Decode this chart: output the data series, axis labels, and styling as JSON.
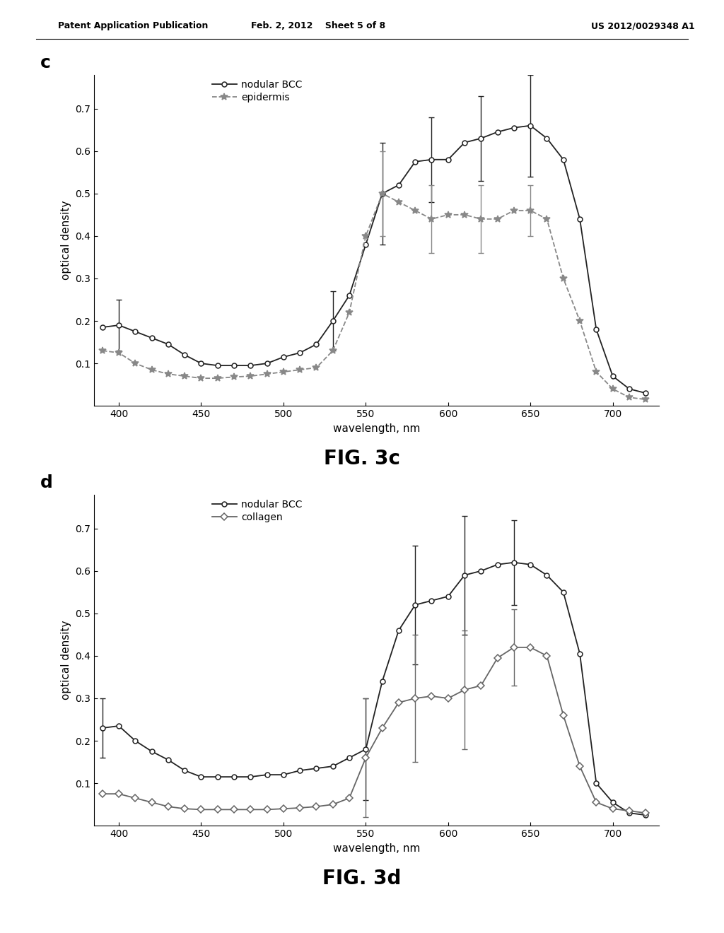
{
  "header_left": "Patent Application Publication",
  "header_center": "Feb. 2, 2012    Sheet 5 of 8",
  "header_right": "US 2012/0029348 A1",
  "chart_c": {
    "label": "c",
    "xlabel": "wavelength, nm",
    "ylabel": "optical density",
    "xlim": [
      385,
      728
    ],
    "ylim": [
      0.0,
      0.78
    ],
    "yticks": [
      0.1,
      0.2,
      0.3,
      0.4,
      0.5,
      0.6,
      0.7
    ],
    "xticks": [
      400,
      450,
      500,
      550,
      600,
      650,
      700
    ],
    "fig_label": "FIG. 3c",
    "series": {
      "nodular_BCC": {
        "label": "nodular BCC",
        "x": [
          390,
          400,
          410,
          420,
          430,
          440,
          450,
          460,
          470,
          480,
          490,
          500,
          510,
          520,
          530,
          540,
          550,
          560,
          570,
          580,
          590,
          600,
          610,
          620,
          630,
          640,
          650,
          660,
          670,
          680,
          690,
          700,
          710,
          720
        ],
        "y": [
          0.185,
          0.19,
          0.175,
          0.16,
          0.145,
          0.12,
          0.1,
          0.095,
          0.095,
          0.095,
          0.1,
          0.115,
          0.125,
          0.145,
          0.2,
          0.26,
          0.38,
          0.5,
          0.52,
          0.575,
          0.58,
          0.58,
          0.62,
          0.63,
          0.645,
          0.655,
          0.66,
          0.63,
          0.58,
          0.44,
          0.18,
          0.07,
          0.04,
          0.03
        ],
        "yerr": [
          null,
          0.06,
          null,
          null,
          null,
          null,
          null,
          null,
          null,
          null,
          null,
          null,
          null,
          null,
          0.07,
          null,
          null,
          0.12,
          null,
          null,
          0.1,
          null,
          null,
          0.1,
          null,
          null,
          0.12,
          null,
          null,
          null,
          null,
          null,
          null,
          null
        ],
        "color": "#222222",
        "marker": "o",
        "markersize": 5,
        "linestyle": "-"
      },
      "epidermis": {
        "label": "epidermis",
        "x": [
          390,
          400,
          410,
          420,
          430,
          440,
          450,
          460,
          470,
          480,
          490,
          500,
          510,
          520,
          530,
          540,
          550,
          560,
          570,
          580,
          590,
          600,
          610,
          620,
          630,
          640,
          650,
          660,
          670,
          680,
          690,
          700,
          710,
          720
        ],
        "y": [
          0.13,
          0.125,
          0.1,
          0.085,
          0.075,
          0.07,
          0.065,
          0.065,
          0.068,
          0.07,
          0.075,
          0.08,
          0.085,
          0.09,
          0.13,
          0.22,
          0.4,
          0.5,
          0.48,
          0.46,
          0.44,
          0.45,
          0.45,
          0.44,
          0.44,
          0.46,
          0.46,
          0.44,
          0.3,
          0.2,
          0.08,
          0.04,
          0.02,
          0.015
        ],
        "yerr": [
          null,
          null,
          null,
          null,
          null,
          null,
          null,
          null,
          null,
          null,
          null,
          null,
          null,
          null,
          null,
          null,
          null,
          0.1,
          null,
          null,
          0.08,
          null,
          null,
          0.08,
          null,
          null,
          0.06,
          null,
          null,
          null,
          null,
          null,
          null,
          null
        ],
        "color": "#888888",
        "marker": "*",
        "markersize": 7,
        "linestyle": "--"
      }
    }
  },
  "chart_d": {
    "label": "d",
    "xlabel": "wavelength, nm",
    "ylabel": "optical density",
    "xlim": [
      385,
      728
    ],
    "ylim": [
      0.0,
      0.78
    ],
    "yticks": [
      0.1,
      0.2,
      0.3,
      0.4,
      0.5,
      0.6,
      0.7
    ],
    "xticks": [
      400,
      450,
      500,
      550,
      600,
      650,
      700
    ],
    "fig_label": "FIG. 3d",
    "series": {
      "nodular_BCC": {
        "label": "nodular BCC",
        "x": [
          390,
          400,
          410,
          420,
          430,
          440,
          450,
          460,
          470,
          480,
          490,
          500,
          510,
          520,
          530,
          540,
          550,
          560,
          570,
          580,
          590,
          600,
          610,
          620,
          630,
          640,
          650,
          660,
          670,
          680,
          690,
          700,
          710,
          720
        ],
        "y": [
          0.23,
          0.235,
          0.2,
          0.175,
          0.155,
          0.13,
          0.115,
          0.115,
          0.115,
          0.115,
          0.12,
          0.12,
          0.13,
          0.135,
          0.14,
          0.16,
          0.18,
          0.34,
          0.46,
          0.52,
          0.53,
          0.54,
          0.59,
          0.6,
          0.615,
          0.62,
          0.615,
          0.59,
          0.55,
          0.405,
          0.1,
          0.055,
          0.03,
          0.025
        ],
        "yerr": [
          0.07,
          null,
          null,
          null,
          null,
          null,
          null,
          null,
          null,
          null,
          null,
          null,
          null,
          null,
          null,
          null,
          0.12,
          null,
          null,
          0.14,
          null,
          null,
          0.14,
          null,
          null,
          0.1,
          null,
          null,
          null,
          null,
          null,
          null,
          null,
          null
        ],
        "color": "#222222",
        "marker": "o",
        "markersize": 5,
        "linestyle": "-"
      },
      "collagen": {
        "label": "collagen",
        "x": [
          390,
          400,
          410,
          420,
          430,
          440,
          450,
          460,
          470,
          480,
          490,
          500,
          510,
          520,
          530,
          540,
          550,
          560,
          570,
          580,
          590,
          600,
          610,
          620,
          630,
          640,
          650,
          660,
          670,
          680,
          690,
          700,
          710,
          720
        ],
        "y": [
          0.075,
          0.075,
          0.065,
          0.055,
          0.045,
          0.04,
          0.038,
          0.038,
          0.038,
          0.038,
          0.038,
          0.04,
          0.042,
          0.045,
          0.05,
          0.065,
          0.16,
          0.23,
          0.29,
          0.3,
          0.305,
          0.3,
          0.32,
          0.33,
          0.395,
          0.42,
          0.42,
          0.4,
          0.26,
          0.14,
          0.055,
          0.04,
          0.035,
          0.03
        ],
        "yerr": [
          null,
          null,
          null,
          null,
          null,
          null,
          null,
          null,
          null,
          null,
          null,
          null,
          null,
          null,
          null,
          null,
          0.14,
          null,
          null,
          0.15,
          null,
          null,
          0.14,
          null,
          null,
          0.09,
          null,
          null,
          null,
          null,
          null,
          null,
          null,
          null
        ],
        "color": "#666666",
        "marker": "D",
        "markersize": 5,
        "linestyle": "-"
      }
    }
  },
  "background_color": "#ffffff",
  "text_color": "#000000"
}
